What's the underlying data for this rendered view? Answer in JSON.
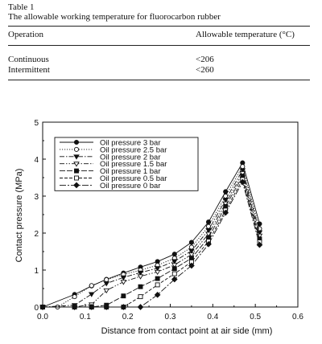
{
  "table": {
    "label": "Table 1",
    "title": "The allowable working temperature for fluorocarbon rubber",
    "columns": [
      "Operation",
      "Allowable temperature (°C)"
    ],
    "rows": [
      [
        "Continuous",
        "<206"
      ],
      [
        "Intermittent",
        "<260"
      ]
    ]
  },
  "chart_data": {
    "type": "line",
    "xlabel": "Distance from contact point at air side (mm)",
    "ylabel": "Contact pressure (MPa)",
    "xlim": [
      0.0,
      0.6
    ],
    "ylim": [
      0,
      5
    ],
    "xticks": [
      "0.0",
      "0.1",
      "0.2",
      "0.3",
      "0.4",
      "0.5",
      "0.6"
    ],
    "yticks": [
      "0",
      "1",
      "2",
      "3",
      "4",
      "5"
    ],
    "grid": false,
    "legend_position": "top-left",
    "series": [
      {
        "name": "Oil pressure 3 bar",
        "marker": "circle-filled",
        "dash": "solid",
        "x": [
          0.0,
          0.075,
          0.115,
          0.15,
          0.19,
          0.23,
          0.27,
          0.31,
          0.35,
          0.39,
          0.43,
          0.47,
          0.51
        ],
        "y": [
          0.0,
          0.34,
          0.57,
          0.75,
          0.92,
          1.08,
          1.23,
          1.43,
          1.75,
          2.3,
          3.12,
          3.9,
          2.25
        ]
      },
      {
        "name": "Oil pressure 2.5 bar",
        "marker": "circle-open",
        "dash": "dotted",
        "x": [
          0.0,
          0.035,
          0.075,
          0.115,
          0.15,
          0.19,
          0.23,
          0.27,
          0.31,
          0.35,
          0.39,
          0.43,
          0.47,
          0.51
        ],
        "y": [
          0.0,
          0.0,
          0.28,
          0.58,
          0.74,
          0.88,
          1.0,
          1.13,
          1.32,
          1.62,
          2.18,
          3.0,
          3.8,
          2.12
        ]
      },
      {
        "name": "Oil pressure 2 bar",
        "marker": "triangle-down-filled",
        "dash": "dashdot",
        "x": [
          0.0,
          0.075,
          0.115,
          0.15,
          0.19,
          0.23,
          0.27,
          0.31,
          0.35,
          0.39,
          0.43,
          0.47,
          0.51
        ],
        "y": [
          0.0,
          0.05,
          0.35,
          0.64,
          0.8,
          0.93,
          1.05,
          1.24,
          1.52,
          2.08,
          2.9,
          3.7,
          2.02
        ]
      },
      {
        "name": "Oil pressure 1.5 bar",
        "marker": "triangle-down-open",
        "dash": "dashdotdot",
        "x": [
          0.0,
          0.075,
          0.115,
          0.15,
          0.19,
          0.23,
          0.27,
          0.31,
          0.35,
          0.39,
          0.43,
          0.47,
          0.51
        ],
        "y": [
          0.0,
          0.0,
          0.07,
          0.45,
          0.68,
          0.83,
          0.95,
          1.14,
          1.42,
          1.98,
          2.8,
          3.62,
          1.93
        ]
      },
      {
        "name": "Oil pressure 1 bar",
        "marker": "square-filled",
        "dash": "longdash",
        "x": [
          0.0,
          0.075,
          0.115,
          0.15,
          0.19,
          0.23,
          0.27,
          0.31,
          0.35,
          0.39,
          0.43,
          0.47,
          0.51
        ],
        "y": [
          0.0,
          0.0,
          0.0,
          0.05,
          0.3,
          0.55,
          0.77,
          1.04,
          1.32,
          1.88,
          2.72,
          3.54,
          1.84
        ]
      },
      {
        "name": "Oil pressure 0.5 bar",
        "marker": "square-open",
        "dash": "dashed",
        "x": [
          0.0,
          0.075,
          0.115,
          0.15,
          0.19,
          0.23,
          0.27,
          0.31,
          0.35,
          0.39,
          0.43,
          0.47,
          0.51
        ],
        "y": [
          0.0,
          0.0,
          0.0,
          0.0,
          0.0,
          0.28,
          0.6,
          0.9,
          1.22,
          1.78,
          2.62,
          3.45,
          1.76
        ]
      },
      {
        "name": "Oil pressure 0 bar",
        "marker": "diamond-filled",
        "dash": "longdashdot",
        "x": [
          0.0,
          0.075,
          0.115,
          0.15,
          0.19,
          0.23,
          0.27,
          0.31,
          0.35,
          0.39,
          0.43,
          0.47,
          0.51
        ],
        "y": [
          0.0,
          0.0,
          0.0,
          0.0,
          0.0,
          0.0,
          0.33,
          0.75,
          1.12,
          1.7,
          2.55,
          3.38,
          1.68
        ]
      }
    ]
  }
}
